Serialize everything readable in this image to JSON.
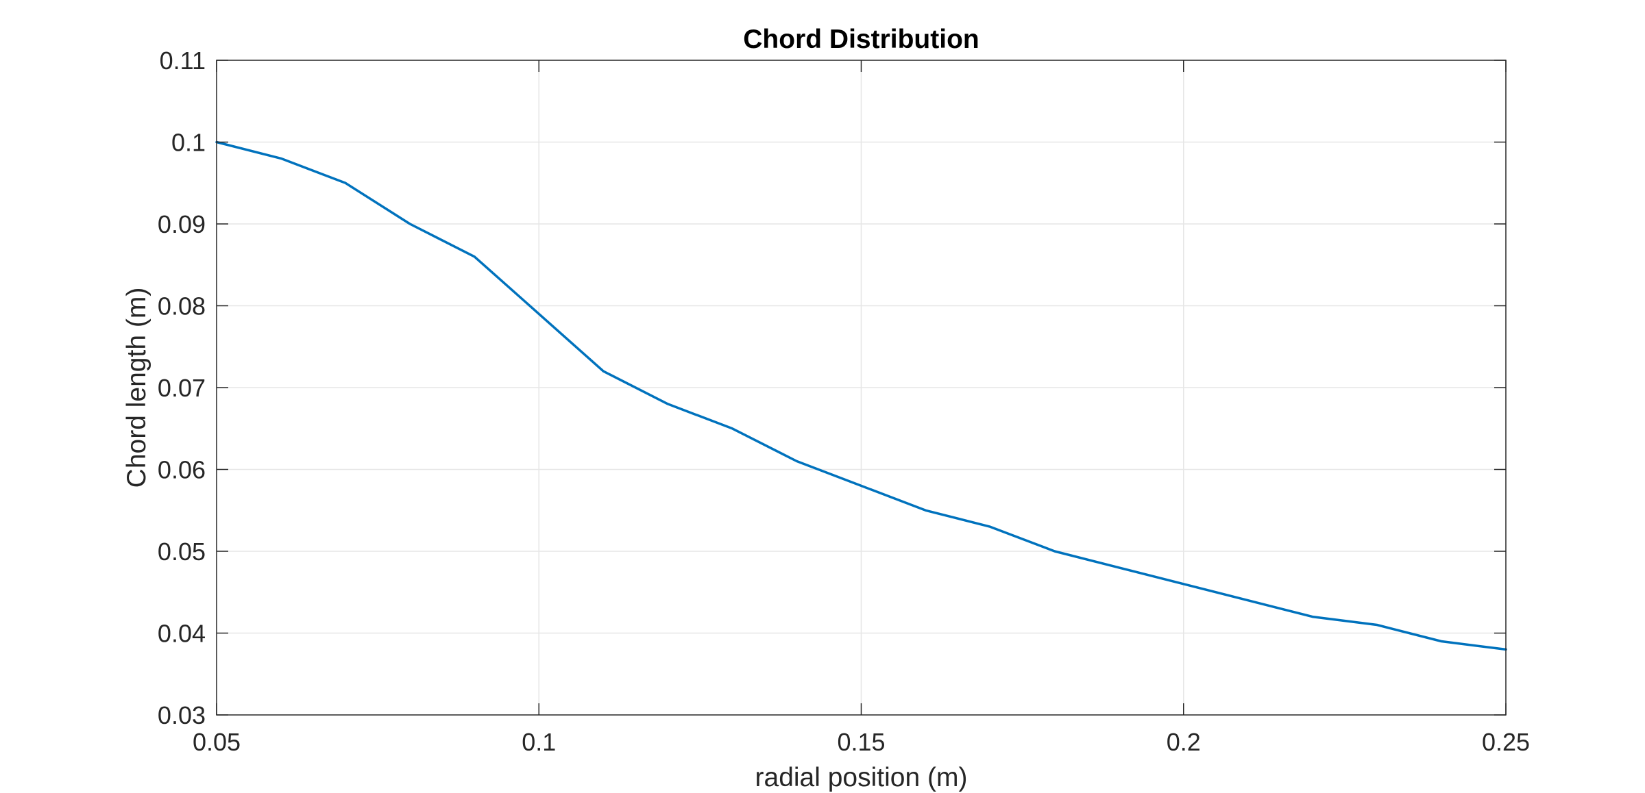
{
  "chart_data": {
    "type": "line",
    "title": "Chord Distribution",
    "xlabel": "radial position (m)",
    "ylabel": "Chord length (m)",
    "xlim": [
      0.05,
      0.25
    ],
    "ylim": [
      0.03,
      0.11
    ],
    "xticks": [
      0.05,
      0.1,
      0.15,
      0.2,
      0.25
    ],
    "xtick_labels": [
      "0.05",
      "0.1",
      "0.15",
      "0.2",
      "0.25"
    ],
    "yticks": [
      0.03,
      0.04,
      0.05,
      0.06,
      0.07,
      0.08,
      0.09,
      0.1,
      0.11
    ],
    "ytick_labels": [
      "0.03",
      "0.04",
      "0.05",
      "0.06",
      "0.07",
      "0.08",
      "0.09",
      "0.1",
      "0.11"
    ],
    "grid": true,
    "series": [
      {
        "color": "#0072bd",
        "x": [
          0.05,
          0.06,
          0.07,
          0.08,
          0.09,
          0.1,
          0.11,
          0.12,
          0.13,
          0.14,
          0.15,
          0.16,
          0.17,
          0.18,
          0.19,
          0.2,
          0.21,
          0.22,
          0.23,
          0.24,
          0.25
        ],
        "y": [
          0.1,
          0.098,
          0.095,
          0.09,
          0.086,
          0.079,
          0.072,
          0.068,
          0.065,
          0.061,
          0.058,
          0.055,
          0.053,
          0.05,
          0.048,
          0.046,
          0.044,
          0.042,
          0.041,
          0.039,
          0.038
        ]
      }
    ]
  }
}
